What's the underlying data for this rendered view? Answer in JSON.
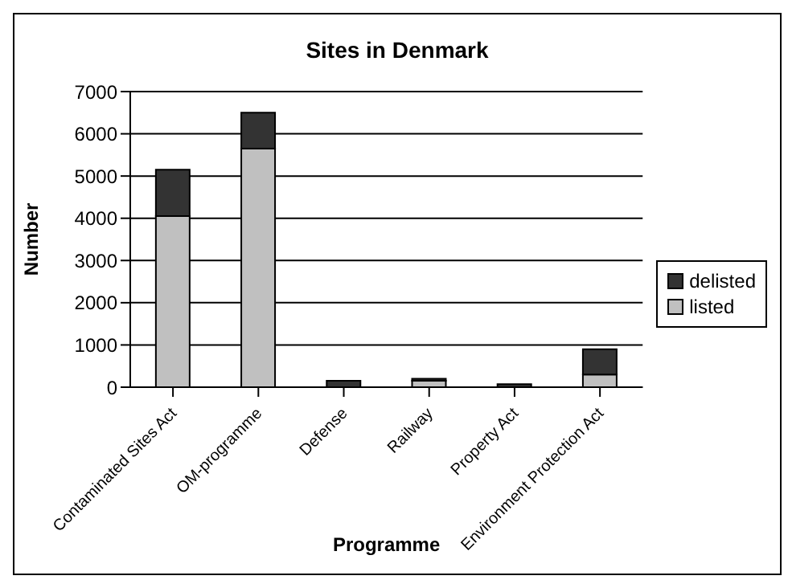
{
  "chart_data": {
    "type": "bar",
    "title": "Sites in Denmark",
    "xlabel": "Programme",
    "ylabel": "Number",
    "categories": [
      "Contaminated Sites Act",
      "OM-programme",
      "Defense",
      "Railway",
      "Property Act",
      "Environment Protection Act"
    ],
    "stacked": true,
    "series": [
      {
        "name": "listed",
        "color": "#c0c0c0",
        "values": [
          4050,
          5650,
          null,
          150,
          null,
          300
        ]
      },
      {
        "name": "delisted",
        "color": "#333333",
        "values": [
          1100,
          850,
          150,
          50,
          70,
          600
        ]
      }
    ],
    "ylim": [
      0,
      7000
    ],
    "yticks": [
      0,
      1000,
      2000,
      3000,
      4000,
      5000,
      6000,
      7000
    ],
    "grid": "y",
    "legend": "right"
  }
}
